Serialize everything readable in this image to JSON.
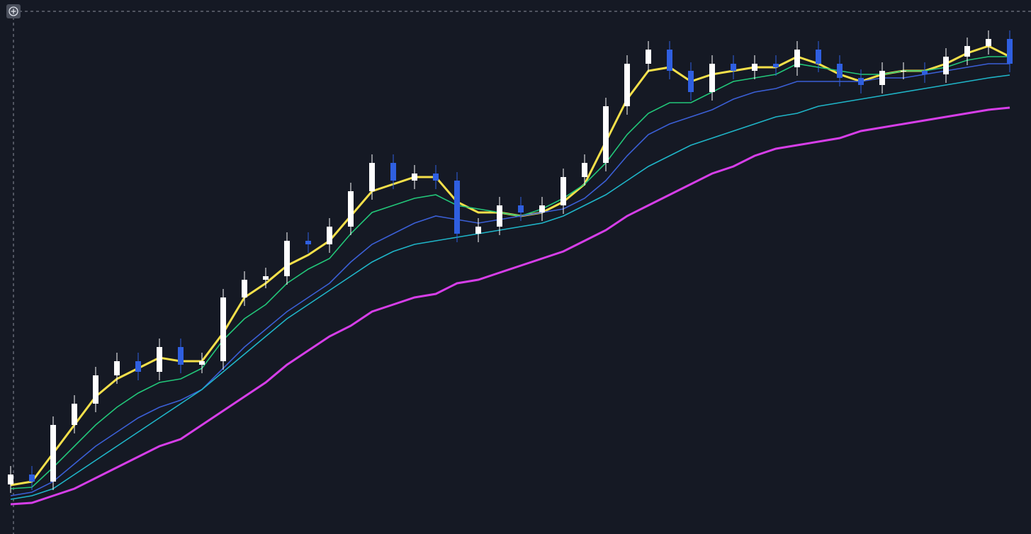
{
  "chart_data": {
    "type": "candlestick",
    "ylim": [
      0,
      750
    ],
    "up_color": "#ffffff",
    "down_color": "#2f5fe0",
    "open": [
      70,
      84,
      74,
      154,
      184,
      224,
      244,
      229,
      264,
      239,
      244,
      334,
      359,
      364,
      414,
      409,
      434,
      484,
      524,
      499,
      509,
      499,
      424,
      434,
      464,
      454,
      464,
      504,
      524,
      604,
      664,
      684,
      654,
      624,
      664,
      654,
      664,
      659,
      684,
      664,
      644,
      634,
      654,
      654,
      649,
      674,
      689,
      699
    ],
    "high": [
      96,
      96,
      166,
      196,
      236,
      256,
      256,
      276,
      276,
      256,
      346,
      371,
      376,
      426,
      426,
      446,
      496,
      536,
      536,
      521,
      521,
      511,
      446,
      476,
      476,
      476,
      516,
      536,
      616,
      676,
      696,
      696,
      666,
      676,
      676,
      676,
      676,
      696,
      696,
      676,
      656,
      666,
      666,
      666,
      686,
      701,
      711,
      711
    ],
    "low": [
      58,
      62,
      62,
      142,
      172,
      212,
      217,
      217,
      227,
      227,
      232,
      322,
      347,
      352,
      397,
      397,
      422,
      472,
      487,
      487,
      487,
      412,
      412,
      422,
      442,
      442,
      452,
      492,
      512,
      592,
      652,
      642,
      612,
      612,
      642,
      642,
      647,
      647,
      652,
      632,
      622,
      622,
      642,
      637,
      637,
      662,
      677,
      652
    ],
    "close": [
      84,
      74,
      154,
      184,
      224,
      244,
      229,
      264,
      239,
      244,
      334,
      359,
      364,
      414,
      409,
      434,
      484,
      524,
      499,
      509,
      499,
      424,
      434,
      464,
      454,
      464,
      504,
      524,
      604,
      664,
      684,
      654,
      624,
      664,
      654,
      664,
      659,
      684,
      664,
      644,
      634,
      654,
      654,
      649,
      674,
      689,
      699,
      664
    ],
    "series": [
      {
        "color": "#f5e04a",
        "values": [
          69,
          74,
          114,
          154,
          194,
          219,
          234,
          249,
          244,
          244,
          284,
          334,
          354,
          379,
          394,
          414,
          449,
          484,
          494,
          504,
          504,
          469,
          454,
          454,
          449,
          454,
          469,
          494,
          554,
          614,
          654,
          659,
          639,
          649,
          654,
          659,
          659,
          674,
          664,
          649,
          639,
          649,
          654,
          654,
          664,
          679,
          689,
          674
        ]
      },
      {
        "color": "#22c77a",
        "values": [
          64,
          66,
          94,
          124,
          154,
          179,
          199,
          214,
          219,
          234,
          274,
          304,
          324,
          354,
          374,
          389,
          424,
          454,
          464,
          474,
          479,
          464,
          459,
          454,
          449,
          459,
          474,
          494,
          524,
          564,
          594,
          609,
          609,
          624,
          639,
          644,
          649,
          664,
          659,
          654,
          649,
          649,
          654,
          654,
          659,
          669,
          674,
          674
        ]
      },
      {
        "color": "#3b5fd6",
        "values": [
          54,
          59,
          74,
          99,
          124,
          144,
          164,
          179,
          189,
          204,
          234,
          264,
          289,
          314,
          334,
          354,
          384,
          409,
          424,
          439,
          449,
          444,
          439,
          444,
          449,
          454,
          459,
          474,
          499,
          534,
          564,
          579,
          589,
          599,
          614,
          624,
          629,
          639,
          639,
          639,
          639,
          644,
          644,
          649,
          654,
          659,
          664,
          664
        ]
      },
      {
        "color": "#1fb5c8",
        "values": [
          49,
          54,
          64,
          84,
          104,
          124,
          144,
          164,
          184,
          204,
          229,
          254,
          279,
          304,
          324,
          344,
          364,
          384,
          399,
          409,
          414,
          419,
          424,
          429,
          434,
          439,
          449,
          464,
          479,
          499,
          519,
          534,
          549,
          559,
          569,
          579,
          589,
          594,
          604,
          609,
          614,
          619,
          624,
          629,
          634,
          639,
          644,
          648
        ]
      },
      {
        "color": "#d63ee8",
        "values": [
          42,
          44,
          54,
          64,
          79,
          94,
          109,
          124,
          134,
          154,
          174,
          194,
          214,
          239,
          259,
          279,
          294,
          314,
          324,
          334,
          339,
          354,
          359,
          369,
          379,
          389,
          399,
          414,
          429,
          449,
          464,
          479,
          494,
          509,
          519,
          534,
          544,
          549,
          554,
          559,
          569,
          574,
          579,
          584,
          589,
          594,
          599,
          602
        ]
      }
    ]
  }
}
